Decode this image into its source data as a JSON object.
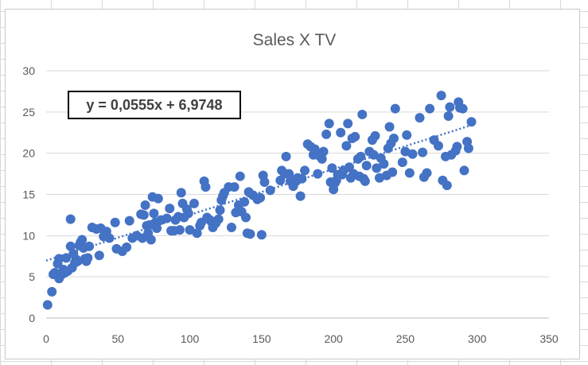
{
  "chart_data": {
    "type": "scatter",
    "title": "Sales X TV",
    "xlim": [
      0,
      350
    ],
    "ylim": [
      0,
      30
    ],
    "xticks": [
      "0",
      "50",
      "100",
      "150",
      "200",
      "250",
      "300",
      "350"
    ],
    "yticks": [
      "0",
      "5",
      "10",
      "15",
      "20",
      "25",
      "30"
    ],
    "grid": true,
    "legend": "none",
    "marker_color": "#4472c4",
    "trendline": {
      "type": "linear",
      "slope": 0.0555,
      "intercept": 6.9748,
      "style": "dotted",
      "color": "#4472c4",
      "equation_label": "y = 0,0555x + 6,9748"
    },
    "series": [
      {
        "points": [
          [
            1,
            1.6
          ],
          [
            4,
            3.2
          ],
          [
            5,
            5.3
          ],
          [
            6,
            5.5
          ],
          [
            8,
            5.3
          ],
          [
            8,
            6.6
          ],
          [
            9,
            4.8
          ],
          [
            9,
            7.2
          ],
          [
            11,
            5.3
          ],
          [
            12,
            5.9
          ],
          [
            13,
            5.5
          ],
          [
            14,
            7.3
          ],
          [
            15,
            5.7
          ],
          [
            17,
            8.7
          ],
          [
            17,
            12
          ],
          [
            18,
            6.1
          ],
          [
            19,
            7.8
          ],
          [
            20,
            6.7
          ],
          [
            21,
            7.1
          ],
          [
            22,
            6.9
          ],
          [
            23,
            8.8
          ],
          [
            24,
            9.2
          ],
          [
            25,
            9.5
          ],
          [
            26,
            8.5
          ],
          [
            27,
            7.2
          ],
          [
            28,
            6.9
          ],
          [
            29,
            7.3
          ],
          [
            30,
            8.7
          ],
          [
            32,
            11
          ],
          [
            35,
            10.8
          ],
          [
            37,
            7.6
          ],
          [
            38,
            10.9
          ],
          [
            40,
            9.9
          ],
          [
            42,
            10.5
          ],
          [
            44,
            9.7
          ],
          [
            48,
            11.6
          ],
          [
            49,
            8.4
          ],
          [
            53,
            8.1
          ],
          [
            56,
            8.6
          ],
          [
            58,
            11.8
          ],
          [
            60,
            9.7
          ],
          [
            63,
            10
          ],
          [
            66,
            12.6
          ],
          [
            67,
            9.7
          ],
          [
            68,
            12.5
          ],
          [
            69,
            13.7
          ],
          [
            70,
            11.2
          ],
          [
            71,
            10.3
          ],
          [
            72,
            11.3
          ],
          [
            73,
            9.5
          ],
          [
            74,
            14.7
          ],
          [
            75,
            12.7
          ],
          [
            76,
            11.6
          ],
          [
            77,
            10.9
          ],
          [
            78,
            14.5
          ],
          [
            80,
            11.9
          ],
          [
            84,
            12.1
          ],
          [
            86,
            13.3
          ],
          [
            87,
            10.6
          ],
          [
            89,
            10.6
          ],
          [
            90,
            11.9
          ],
          [
            92,
            12.3
          ],
          [
            93,
            10.7
          ],
          [
            94,
            15.2
          ],
          [
            95,
            13.9
          ],
          [
            96,
            12.2
          ],
          [
            98,
            13.2
          ],
          [
            99,
            12.7
          ],
          [
            100,
            10.7
          ],
          [
            103,
            13.9
          ],
          [
            105,
            10.3
          ],
          [
            107,
            11.2
          ],
          [
            108,
            11.6
          ],
          [
            110,
            16.6
          ],
          [
            111,
            15.9
          ],
          [
            112,
            12.2
          ],
          [
            114,
            11.9
          ],
          [
            115,
            11.7
          ],
          [
            116,
            11
          ],
          [
            118,
            11.5
          ],
          [
            120,
            12
          ],
          [
            121,
            13.1
          ],
          [
            122,
            14.3
          ],
          [
            123,
            14.8
          ],
          [
            124,
            15.2
          ],
          [
            127,
            15.9
          ],
          [
            129,
            11
          ],
          [
            131,
            15.9
          ],
          [
            132,
            12.8
          ],
          [
            134,
            13.7
          ],
          [
            135,
            17.2
          ],
          [
            136,
            12.9
          ],
          [
            138,
            14.1
          ],
          [
            139,
            12.2
          ],
          [
            140,
            10.3
          ],
          [
            141,
            15.3
          ],
          [
            142,
            10.2
          ],
          [
            144,
            14.9
          ],
          [
            147,
            14.4
          ],
          [
            149,
            14.6
          ],
          [
            150,
            10.1
          ],
          [
            151,
            17.3
          ],
          [
            152,
            16.5
          ],
          [
            156,
            15.5
          ],
          [
            163,
            16.7
          ],
          [
            164,
            17.9
          ],
          [
            166,
            17.5
          ],
          [
            167,
            19.6
          ],
          [
            169,
            17.5
          ],
          [
            170,
            16.6
          ],
          [
            172,
            16
          ],
          [
            174,
            16.6
          ],
          [
            175,
            17
          ],
          [
            177,
            14.8
          ],
          [
            178,
            16.9
          ],
          [
            180,
            17.9
          ],
          [
            182,
            21.1
          ],
          [
            184,
            20.8
          ],
          [
            186,
            19.8
          ],
          [
            187,
            20.5
          ],
          [
            188,
            20.1
          ],
          [
            189,
            17.5
          ],
          [
            190,
            19.7
          ],
          [
            192,
            19.3
          ],
          [
            193,
            20.2
          ],
          [
            195,
            22.3
          ],
          [
            197,
            23.6
          ],
          [
            198,
            16.5
          ],
          [
            199,
            18.2
          ],
          [
            200,
            15.6
          ],
          [
            201,
            16.4
          ],
          [
            202,
            16.7
          ],
          [
            203,
            17.4
          ],
          [
            205,
            22.5
          ],
          [
            206,
            17.4
          ],
          [
            207,
            17.9
          ],
          [
            209,
            20.9
          ],
          [
            210,
            23.6
          ],
          [
            211,
            18.3
          ],
          [
            212,
            17
          ],
          [
            213,
            21.8
          ],
          [
            214,
            17.5
          ],
          [
            215,
            22
          ],
          [
            217,
            19.3
          ],
          [
            218,
            17.2
          ],
          [
            219,
            19.6
          ],
          [
            220,
            24.7
          ],
          [
            221,
            16.9
          ],
          [
            222,
            16.6
          ],
          [
            223,
            18.5
          ],
          [
            225,
            20.2
          ],
          [
            227,
            21.6
          ],
          [
            228,
            19.8
          ],
          [
            229,
            22.1
          ],
          [
            230,
            18.2
          ],
          [
            232,
            17
          ],
          [
            233,
            19.4
          ],
          [
            235,
            18.7
          ],
          [
            237,
            17.3
          ],
          [
            238,
            20.6
          ],
          [
            239,
            23.2
          ],
          [
            240,
            21.2
          ],
          [
            241,
            17.7
          ],
          [
            242,
            21.8
          ],
          [
            243,
            25.4
          ],
          [
            248,
            18.9
          ],
          [
            250,
            20.2
          ],
          [
            251,
            22.2
          ],
          [
            253,
            17.6
          ],
          [
            255,
            19.9
          ],
          [
            260,
            24.3
          ],
          [
            262,
            20.1
          ],
          [
            263,
            17.1
          ],
          [
            265,
            17.6
          ],
          [
            267,
            25.4
          ],
          [
            270,
            21.6
          ],
          [
            273,
            20.9
          ],
          [
            275,
            27
          ],
          [
            276,
            16.7
          ],
          [
            278,
            19.6
          ],
          [
            279,
            16.1
          ],
          [
            280,
            24.5
          ],
          [
            281,
            25.6
          ],
          [
            282,
            19.8
          ],
          [
            285,
            20.3
          ],
          [
            286,
            20.8
          ],
          [
            287,
            26.2
          ],
          [
            288,
            25.5
          ],
          [
            290,
            25.4
          ],
          [
            291,
            17.9
          ],
          [
            293,
            21.4
          ],
          [
            294,
            20.6
          ],
          [
            296,
            23.8
          ]
        ]
      }
    ]
  }
}
